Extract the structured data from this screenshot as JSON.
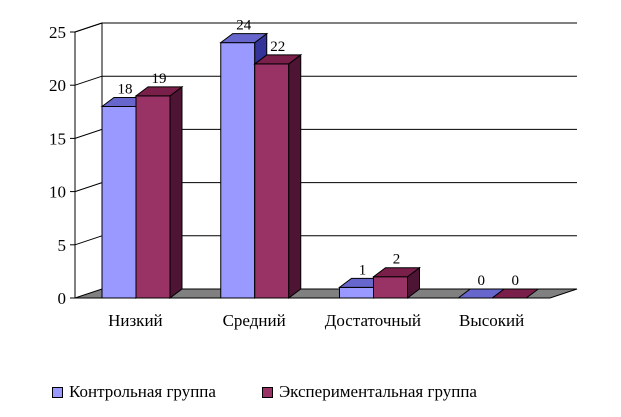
{
  "chart_data": {
    "type": "bar",
    "title": "",
    "xlabel": "",
    "ylabel": "",
    "ylim": [
      0,
      25
    ],
    "yticks": [
      "0",
      "5",
      "10",
      "15",
      "20",
      "25"
    ],
    "grid": true,
    "legend_position": "bottom",
    "categories": [
      "Низкий",
      "Средний",
      "Достаточный",
      "Высокий"
    ],
    "series": [
      {
        "name": "Контрольная группа",
        "values": [
          18,
          24,
          1,
          0
        ],
        "color": "#9999ff",
        "top_color": "#6666cc",
        "side_color": "#333399"
      },
      {
        "name": "Экспериментальная группа",
        "values": [
          19,
          22,
          2,
          0
        ],
        "color": "#993366",
        "top_color": "#7a1f4a",
        "side_color": "#4d1433"
      }
    ]
  }
}
